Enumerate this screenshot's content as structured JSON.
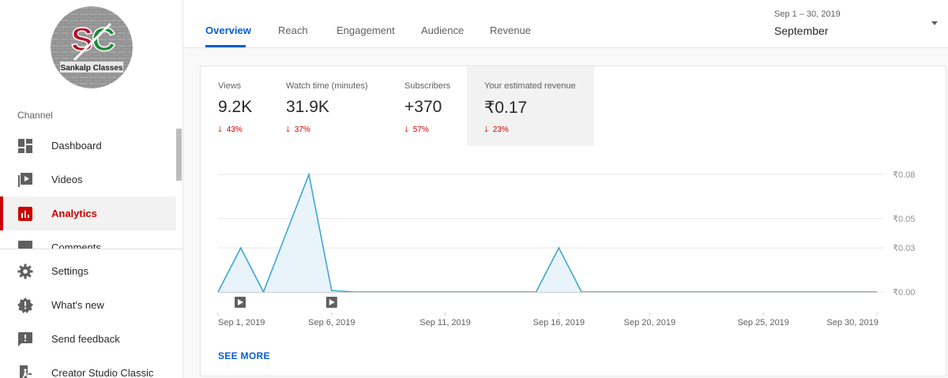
{
  "sidebar": {
    "logo_text": "Sankalp Classes",
    "section_label": "Channel",
    "items": [
      {
        "label": "Dashboard",
        "icon": "dashboard-icon"
      },
      {
        "label": "Videos",
        "icon": "videos-icon"
      },
      {
        "label": "Analytics",
        "icon": "analytics-icon",
        "active": true
      },
      {
        "label": "Comments",
        "icon": "comments-icon"
      }
    ],
    "bottom_items": [
      {
        "label": "Settings",
        "icon": "gear-icon"
      },
      {
        "label": "What's new",
        "icon": "whats-new-icon"
      },
      {
        "label": "Send feedback",
        "icon": "feedback-icon"
      },
      {
        "label": "Creator Studio Classic",
        "icon": "classic-icon"
      }
    ]
  },
  "header": {
    "tabs": [
      {
        "label": "Overview",
        "active": true
      },
      {
        "label": "Reach"
      },
      {
        "label": "Engagement"
      },
      {
        "label": "Audience"
      },
      {
        "label": "Revenue"
      }
    ],
    "date_range": "Sep 1 – 30, 2019",
    "date_label": "September"
  },
  "metrics": [
    {
      "label": "Views",
      "value": "9.2K",
      "change": "43%",
      "direction": "down"
    },
    {
      "label": "Watch time (minutes)",
      "value": "31.9K",
      "change": "37%",
      "direction": "down"
    },
    {
      "label": "Subscribers",
      "value": "+370",
      "change": "57%",
      "direction": "down"
    },
    {
      "label": "Your estimated revenue",
      "value": "₹0.17",
      "change": "23%",
      "direction": "down",
      "selected": true
    }
  ],
  "colors": {
    "accent": "#065fd4",
    "active_red": "#cc0000",
    "line": "#3ea6d2",
    "fill": "#e8f4fa"
  },
  "chart_data": {
    "type": "area",
    "x": [
      "Sep 1",
      "Sep 2",
      "Sep 3",
      "Sep 4",
      "Sep 5",
      "Sep 6",
      "Sep 7",
      "Sep 8",
      "Sep 9",
      "Sep 10",
      "Sep 11",
      "Sep 12",
      "Sep 13",
      "Sep 14",
      "Sep 15",
      "Sep 16",
      "Sep 17",
      "Sep 18",
      "Sep 19",
      "Sep 20",
      "Sep 21",
      "Sep 22",
      "Sep 23",
      "Sep 24",
      "Sep 25",
      "Sep 26",
      "Sep 27",
      "Sep 28",
      "Sep 29",
      "Sep 30"
    ],
    "series": [
      {
        "values": [
          0.0,
          0.03,
          0.0,
          0.04,
          0.08,
          0.001,
          0.0,
          0.0,
          0.0,
          0.0,
          0.0,
          0.0,
          0.0,
          0.0,
          0.0,
          0.03,
          0.0,
          0.0,
          0.0,
          0.0,
          0.0,
          0.0,
          0.0,
          0.0,
          0.0,
          0.0,
          0.0,
          0.0,
          0.0,
          0.0
        ]
      }
    ],
    "x_tick_labels": [
      "Sep 1, 2019",
      "Sep 6, 2019",
      "Sep 11, 2019",
      "Sep 16, 2019",
      "Sep 20, 2019",
      "Sep 25, 2019",
      "Sep 30, 2019"
    ],
    "x_tick_positions": [
      1,
      6,
      11,
      16,
      20,
      25,
      30
    ],
    "y_ticks": [
      0.08,
      0.05,
      0.03,
      0.0
    ],
    "y_tick_labels": [
      "₹0.08",
      "₹0.05",
      "₹0.03",
      "₹0.00"
    ],
    "ylim": [
      0,
      0.08
    ],
    "video_markers": [
      1,
      6
    ],
    "grid": true
  },
  "see_more": "SEE MORE"
}
